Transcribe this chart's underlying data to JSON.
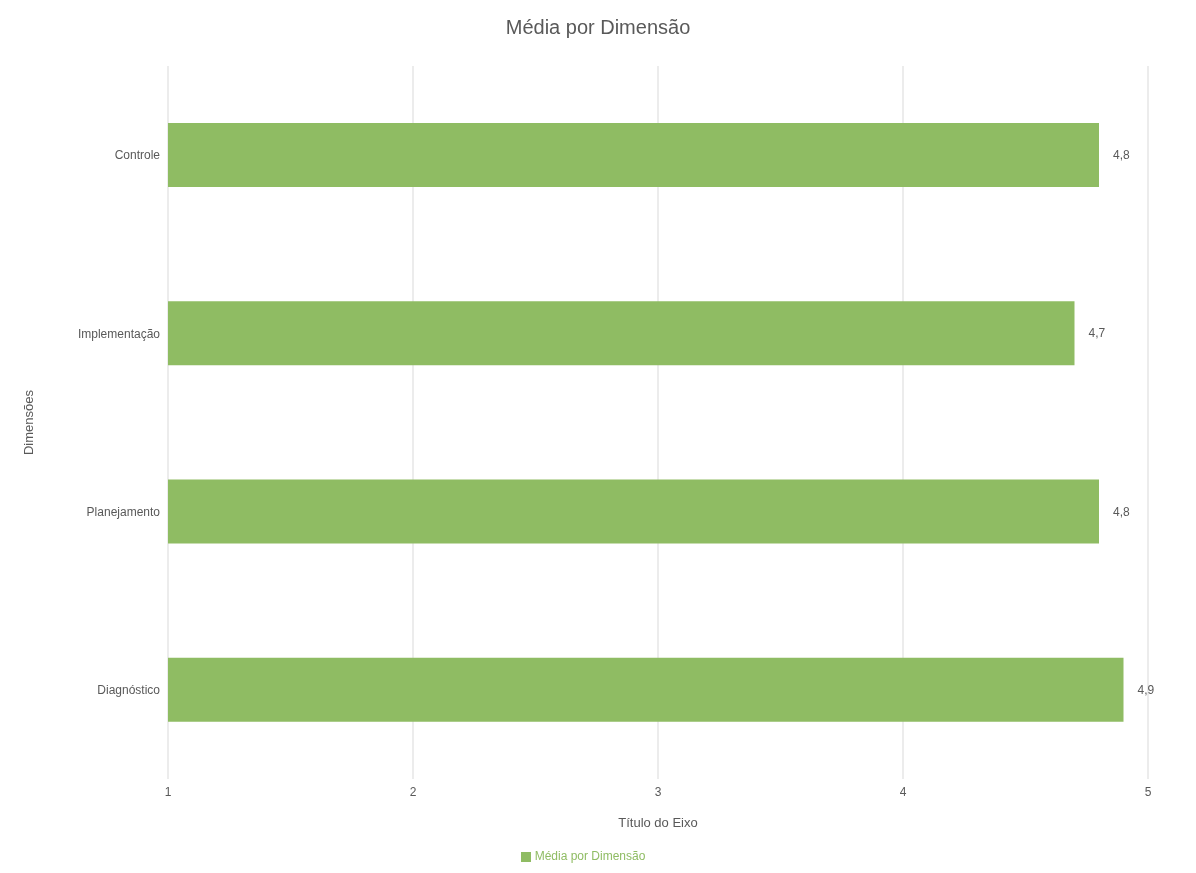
{
  "chart_data": {
    "type": "bar",
    "orientation": "horizontal",
    "title": "Média por Dimensão",
    "xlabel": "Título do Eixo",
    "ylabel": "Dimensões",
    "categories": [
      "Controle",
      "Implementação",
      "Planejamento",
      "Diagnóstico"
    ],
    "series": [
      {
        "name": "Média por Dimensão",
        "color": "#8fbc63",
        "values": [
          4.8,
          4.7,
          4.8,
          4.9
        ],
        "value_labels": [
          "4,8",
          "4,7",
          "4,8",
          "4,9"
        ]
      }
    ],
    "xlim": [
      1,
      5
    ],
    "xticks": [
      1,
      2,
      3,
      4,
      5
    ],
    "grid": "x",
    "legend": "bottom"
  }
}
